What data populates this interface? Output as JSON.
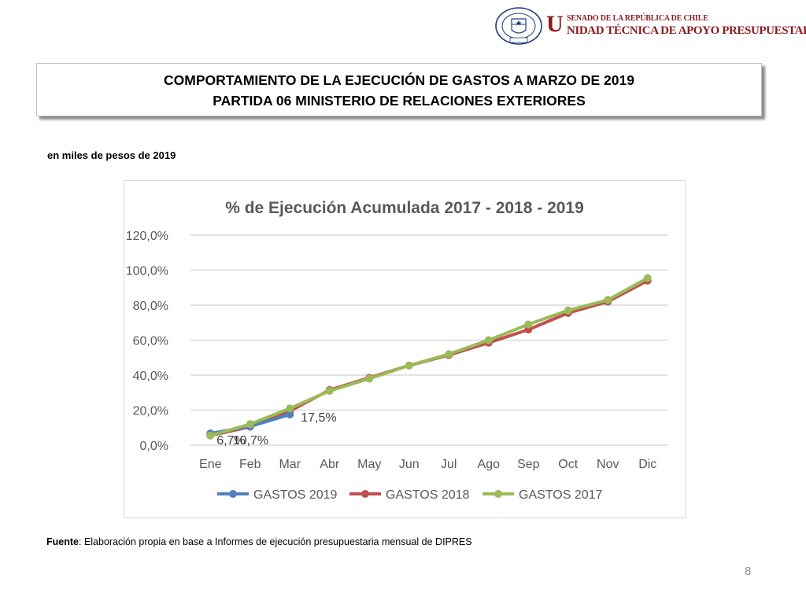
{
  "header": {
    "seal_text": "REPÚBLICA DE CHILE · SENADO",
    "logo_initial": "U",
    "logo_top": "SENADO DE LA REPÚBLICA DE CHILE",
    "logo_bottom": "NIDAD TÉCNICA DE APOYO PRESUPUESTARIO"
  },
  "title": {
    "line1": "COMPORTAMIENTO DE LA EJECUCIÓN DE GASTOS A MARZO DE 2019",
    "line2": "PARTIDA 06 MINISTERIO DE RELACIONES EXTERIORES"
  },
  "units": "en miles de pesos de 2019",
  "chart_data": {
    "type": "line",
    "title": "% de Ejecución Acumulada 2017 - 2018 - 2019",
    "categories": [
      "Ene",
      "Feb",
      "Mar",
      "Abr",
      "May",
      "Jun",
      "Jul",
      "Ago",
      "Sep",
      "Oct",
      "Nov",
      "Dic"
    ],
    "ylim": [
      0,
      120
    ],
    "yticks": [
      "0,0%",
      "20,0%",
      "40,0%",
      "60,0%",
      "80,0%",
      "100,0%",
      "120,0%"
    ],
    "grid": true,
    "legend": "bottom",
    "series": [
      {
        "name": "GASTOS 2019",
        "color": "#4f81bd",
        "values": [
          6.7,
          10.7,
          17.5,
          null,
          null,
          null,
          null,
          null,
          null,
          null,
          null,
          null
        ],
        "labels": [
          "6,7%",
          "10,7%",
          "17,5%"
        ]
      },
      {
        "name": "GASTOS 2018",
        "color": "#c0504d",
        "values": [
          5.5,
          10.5,
          19.5,
          31.5,
          38.5,
          45.5,
          51.5,
          58.5,
          66,
          75.5,
          82,
          94
        ]
      },
      {
        "name": "GASTOS 2017",
        "color": "#9bbb59",
        "values": [
          5.5,
          12,
          21,
          31,
          38,
          45.5,
          52,
          60,
          69,
          77,
          83,
          95.5
        ]
      }
    ]
  },
  "source": {
    "label": "Fuente",
    "text": ": Elaboración propia en base  a Informes de ejecución presupuestaria mensual de DIPRES"
  },
  "page_number": "8"
}
